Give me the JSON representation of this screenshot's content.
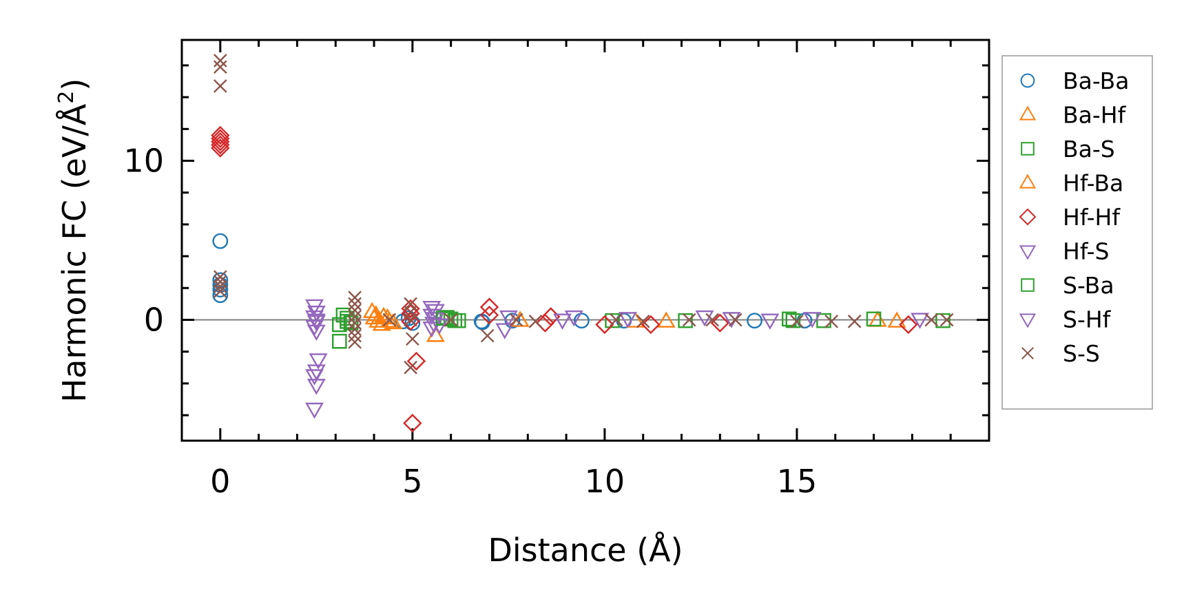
{
  "chart_data": {
    "type": "scatter",
    "xlabel": "Distance (Å)",
    "ylabel_main": "Harmonic FC (eV/Å",
    "ylabel_sup": "2",
    "ylabel_close": ")",
    "xlim": [
      -1.0,
      20.0
    ],
    "ylim": [
      -7.6,
      17.6
    ],
    "x_major_ticks": [
      0,
      5,
      10,
      15
    ],
    "x_tick_labels": [
      "0",
      "5",
      "10",
      "15"
    ],
    "y_major_ticks": [
      0,
      10
    ],
    "y_tick_labels": [
      "0",
      "10"
    ],
    "x_minor_step": 1,
    "y_minor_step": 2,
    "zero_line": true,
    "grid": false,
    "legend_position": "outside-right",
    "series": [
      {
        "name": "Ba-Ba",
        "marker": "circle",
        "color": "#1f77b4",
        "points": [
          [
            0,
            4.95
          ],
          [
            0,
            2.5
          ],
          [
            0,
            2.2
          ],
          [
            0,
            1.9
          ],
          [
            0,
            1.55
          ],
          [
            4.75,
            -0.1
          ],
          [
            4.9,
            0.1
          ],
          [
            5.0,
            -0.2
          ],
          [
            6.8,
            -0.1
          ],
          [
            6.82,
            -0.15
          ],
          [
            7.6,
            -0.05
          ],
          [
            9.4,
            -0.05
          ],
          [
            10.5,
            -0.05
          ],
          [
            13.9,
            -0.05
          ],
          [
            15.2,
            -0.05
          ]
        ]
      },
      {
        "name": "Ba-Hf",
        "marker": "triangle-up",
        "color": "#ff7f0e",
        "points": [
          [
            3.95,
            0.5
          ],
          [
            4.05,
            0.3
          ],
          [
            4.2,
            -0.3
          ],
          [
            4.35,
            0.1
          ],
          [
            4.5,
            -0.2
          ],
          [
            5.6,
            -1.0
          ],
          [
            7.8,
            -0.05
          ],
          [
            10.8,
            -0.1
          ],
          [
            11.6,
            -0.1
          ],
          [
            17.1,
            -0.05
          ],
          [
            17.6,
            -0.1
          ]
        ]
      },
      {
        "name": "Ba-S",
        "marker": "square",
        "color": "#2ca02c",
        "points": [
          [
            3.1,
            -1.35
          ],
          [
            3.1,
            -0.3
          ],
          [
            3.2,
            0.3
          ],
          [
            3.3,
            0.1
          ],
          [
            3.4,
            -0.2
          ],
          [
            5.9,
            0.15
          ],
          [
            6.0,
            0.05
          ],
          [
            6.2,
            -0.05
          ],
          [
            10.2,
            -0.05
          ],
          [
            12.1,
            -0.05
          ],
          [
            14.9,
            -0.05
          ],
          [
            15.7,
            -0.05
          ],
          [
            17.0,
            0.05
          ],
          [
            18.8,
            -0.05
          ]
        ]
      },
      {
        "name": "Hf-Ba",
        "marker": "triangle-up",
        "color": "#ff7f0e",
        "points": [
          [
            4.0,
            0.1
          ],
          [
            4.1,
            -0.1
          ],
          [
            4.25,
            0.2
          ],
          [
            4.4,
            -0.1
          ]
        ]
      },
      {
        "name": "Hf-Hf",
        "marker": "diamond",
        "color": "#d62728",
        "points": [
          [
            0,
            11.6
          ],
          [
            0,
            11.4
          ],
          [
            0,
            11.2
          ],
          [
            0,
            11.0
          ],
          [
            0,
            10.8
          ],
          [
            4.95,
            0.7
          ],
          [
            4.95,
            0.4
          ],
          [
            4.95,
            -0.1
          ],
          [
            5.1,
            -2.6
          ],
          [
            5.0,
            -6.5
          ],
          [
            7.0,
            0.8
          ],
          [
            7.0,
            0.3
          ],
          [
            8.45,
            -0.2
          ],
          [
            8.6,
            0.2
          ],
          [
            10.0,
            -0.3
          ],
          [
            11.2,
            -0.3
          ],
          [
            13.0,
            -0.2
          ],
          [
            17.9,
            -0.3
          ]
        ]
      },
      {
        "name": "Hf-S",
        "marker": "triangle-down",
        "color": "#9467bd",
        "points": [
          [
            2.45,
            0.9
          ],
          [
            2.5,
            0.5
          ],
          [
            2.45,
            0.2
          ],
          [
            2.5,
            -0.1
          ],
          [
            2.45,
            -0.4
          ],
          [
            2.5,
            -0.7
          ],
          [
            2.55,
            -2.5
          ],
          [
            2.5,
            -3.2
          ],
          [
            2.45,
            -3.5
          ],
          [
            2.5,
            -4.1
          ],
          [
            2.45,
            -5.6
          ],
          [
            5.5,
            0.8
          ],
          [
            5.6,
            0.6
          ],
          [
            5.5,
            0.3
          ],
          [
            5.6,
            0.1
          ],
          [
            5.55,
            -0.2
          ],
          [
            5.5,
            -0.5
          ],
          [
            7.5,
            0.2
          ],
          [
            7.4,
            -0.6
          ],
          [
            9.2,
            0.2
          ],
          [
            10.6,
            0.1
          ],
          [
            12.6,
            0.2
          ],
          [
            13.3,
            0.1
          ],
          [
            15.4,
            0.1
          ]
        ]
      },
      {
        "name": "S-Ba",
        "marker": "square",
        "color": "#2ca02c",
        "points": [
          [
            3.3,
            -0.1
          ],
          [
            5.8,
            0.1
          ],
          [
            6.1,
            -0.05
          ],
          [
            14.8,
            0.05
          ]
        ]
      },
      {
        "name": "S-Hf",
        "marker": "triangle-down",
        "color": "#9467bd",
        "points": [
          [
            2.5,
            0.0
          ],
          [
            5.7,
            -0.3
          ],
          [
            8.9,
            0.0
          ],
          [
            14.3,
            0.0
          ],
          [
            18.2,
            0.05
          ]
        ]
      },
      {
        "name": "S-S",
        "marker": "x",
        "color": "#8c564b",
        "points": [
          [
            0,
            16.3
          ],
          [
            0,
            15.9
          ],
          [
            0,
            14.7
          ],
          [
            0,
            2.7
          ],
          [
            0,
            2.4
          ],
          [
            0,
            2.1
          ],
          [
            0,
            1.8
          ],
          [
            3.5,
            1.4
          ],
          [
            3.5,
            1.0
          ],
          [
            3.5,
            0.6
          ],
          [
            3.5,
            0.2
          ],
          [
            3.5,
            -0.2
          ],
          [
            3.5,
            -0.6
          ],
          [
            3.5,
            -1.0
          ],
          [
            3.5,
            -1.4
          ],
          [
            4.4,
            0.0
          ],
          [
            4.95,
            1.0
          ],
          [
            4.95,
            0.5
          ],
          [
            4.95,
            0.0
          ],
          [
            5.0,
            -1.2
          ],
          [
            4.95,
            -3.0
          ],
          [
            6.0,
            0.0
          ],
          [
            6.95,
            -1.0
          ],
          [
            7.7,
            0.0
          ],
          [
            8.2,
            -0.1
          ],
          [
            10.3,
            0.0
          ],
          [
            11.0,
            -0.1
          ],
          [
            12.2,
            0.0
          ],
          [
            12.8,
            0.0
          ],
          [
            13.4,
            0.0
          ],
          [
            15.0,
            -0.1
          ],
          [
            15.9,
            -0.1
          ],
          [
            16.5,
            -0.1
          ],
          [
            18.5,
            0.0
          ],
          [
            18.9,
            0.0
          ]
        ]
      }
    ]
  }
}
